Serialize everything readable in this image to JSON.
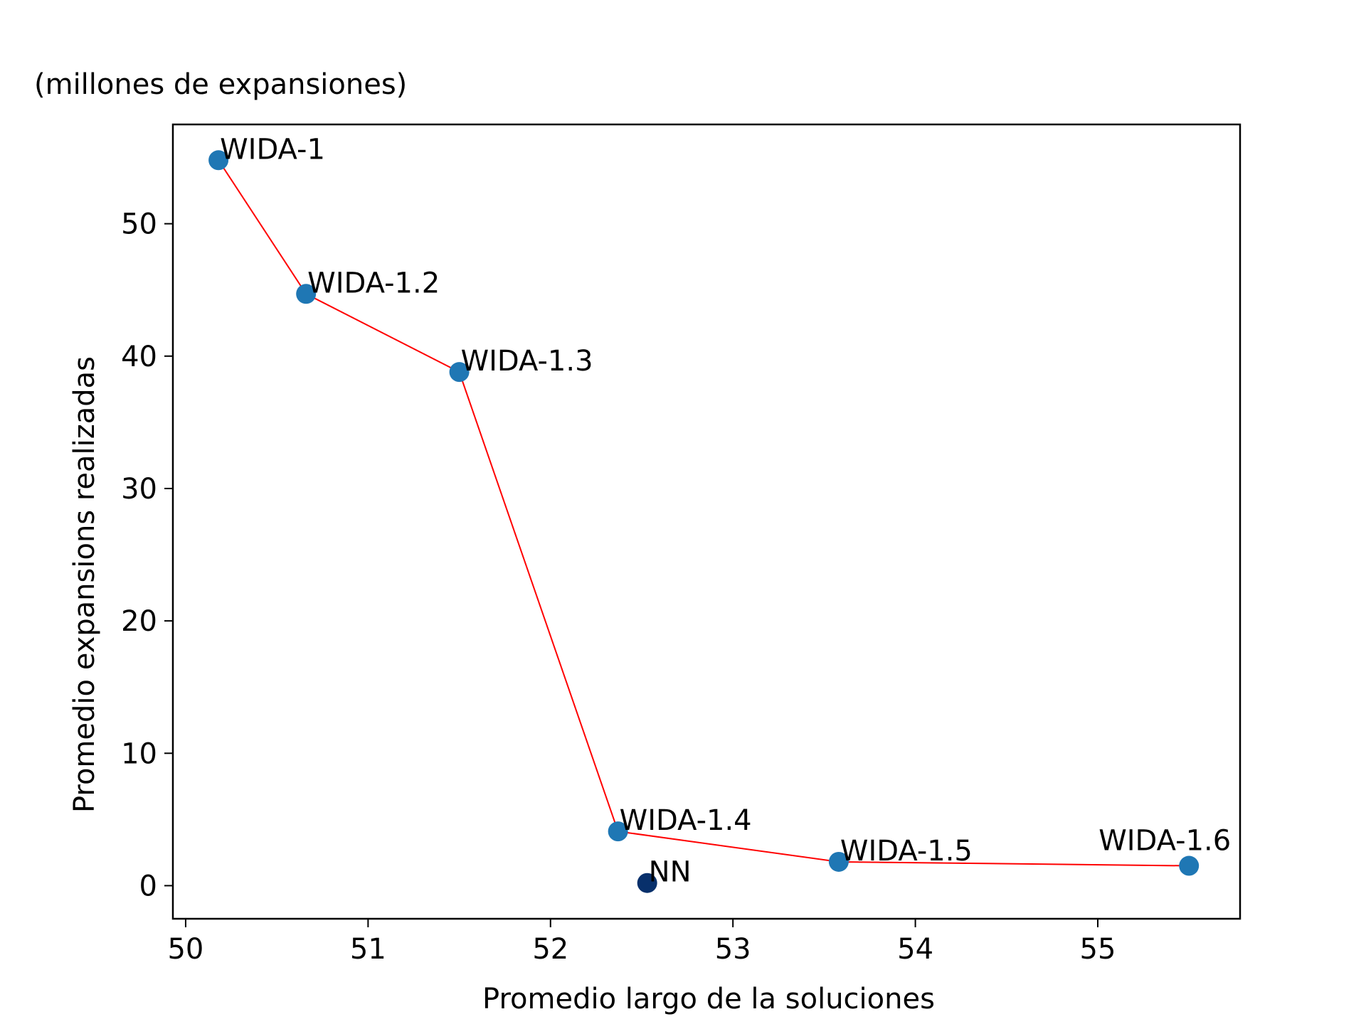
{
  "chart_data": {
    "type": "scatter",
    "title": "",
    "xlabel": "Promedio largo de la soluciones",
    "ylabel": "Promedio expansions realizadas",
    "y_unit_note": "(millones de expansiones)",
    "xlim": [
      49.93,
      55.78
    ],
    "ylim": [
      -2.5,
      57.5
    ],
    "x_ticks": [
      50,
      51,
      52,
      53,
      54,
      55
    ],
    "y_ticks": [
      0,
      10,
      20,
      30,
      40,
      50
    ],
    "grid": false,
    "legend": "none",
    "series": [
      {
        "points": [
          {
            "label": "WIDA-1",
            "x": 50.18,
            "y": 54.8
          },
          {
            "label": "WIDA-1.2",
            "x": 50.66,
            "y": 44.7
          },
          {
            "label": "WIDA-1.3",
            "x": 51.5,
            "y": 38.8
          },
          {
            "label": "WIDA-1.4",
            "x": 52.37,
            "y": 4.1
          },
          {
            "label": "WIDA-1.5",
            "x": 53.58,
            "y": 1.8
          },
          {
            "label": "WIDA-1.6",
            "x": 55.5,
            "y": 1.5
          }
        ],
        "color": "#1f77b4",
        "frontier_line_color": "#ff0000"
      },
      {
        "points": [
          {
            "label": "NN",
            "x": 52.53,
            "y": 0.2
          }
        ],
        "color": "#08306b"
      }
    ]
  }
}
